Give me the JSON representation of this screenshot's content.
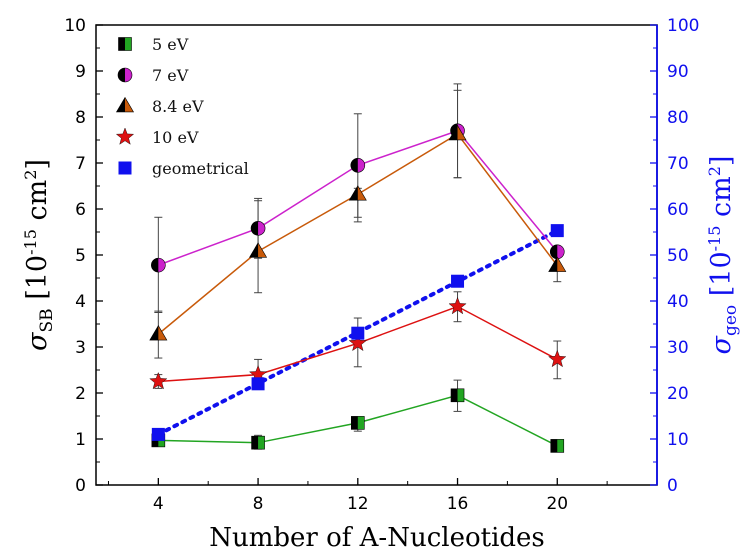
{
  "chart_data": {
    "type": "line",
    "title": "",
    "xlabel": "Number of A-Nucleotides",
    "ylabel_left": {
      "main": "σ",
      "sub": "SB",
      "unit_prefix": " [10",
      "exp": "-15",
      "unit_mid": " cm",
      "exp2": "2",
      "unit_suffix": "]"
    },
    "ylabel_right": {
      "main": "σ",
      "sub": "geo",
      "unit_prefix": " [10",
      "exp": "-15",
      "unit_mid": " cm",
      "exp2": "2",
      "unit_suffix": "]"
    },
    "x": [
      4,
      8,
      12,
      16,
      20
    ],
    "xlim": [
      1.5,
      24
    ],
    "ylim_left": [
      0,
      10
    ],
    "ylim_right": [
      0,
      100
    ],
    "x_ticks": [
      "4",
      "8",
      "12",
      "16",
      "20"
    ],
    "y_ticks_left": [
      "0",
      "1",
      "2",
      "3",
      "4",
      "5",
      "6",
      "7",
      "8",
      "9",
      "10"
    ],
    "y_ticks_right": [
      "0",
      "10",
      "20",
      "30",
      "40",
      "50",
      "60",
      "70",
      "80",
      "90",
      "100"
    ],
    "right_axis_color": "#1010ee",
    "legend_position": "top-left",
    "series": [
      {
        "name": "5 eV",
        "axis": "left",
        "marker": "square-half",
        "color": "#22a522",
        "values": [
          0.97,
          0.92,
          1.35,
          1.95,
          0.85
        ],
        "err_low": [
          0.97,
          0.78,
          1.17,
          1.6,
          0.85
        ],
        "err_high": [
          0.97,
          1.08,
          1.48,
          2.28,
          0.85
        ]
      },
      {
        "name": "7 eV",
        "axis": "left",
        "marker": "circle-half",
        "color": "#cc22cc",
        "values": [
          4.78,
          5.58,
          6.95,
          7.7,
          5.07
        ],
        "err_low": [
          3.75,
          4.93,
          5.82,
          6.68,
          5.07
        ],
        "err_high": [
          5.82,
          6.23,
          8.07,
          8.72,
          5.07
        ]
      },
      {
        "name": "8.4 eV",
        "axis": "left",
        "marker": "triangle",
        "color": "#c85a0a",
        "values": [
          3.28,
          5.08,
          6.32,
          7.63,
          4.77
        ],
        "err_low": [
          2.76,
          4.18,
          5.72,
          6.68,
          4.42
        ],
        "err_high": [
          3.78,
          6.18,
          6.45,
          8.58,
          4.77
        ]
      },
      {
        "name": "10 eV",
        "axis": "left",
        "marker": "star",
        "color": "#dd1111",
        "values": [
          2.25,
          2.4,
          3.08,
          3.88,
          2.73
        ],
        "err_low": [
          2.1,
          2.12,
          2.57,
          3.55,
          2.31
        ],
        "err_high": [
          2.4,
          2.73,
          3.63,
          4.2,
          3.13
        ]
      },
      {
        "name": "geometrical",
        "axis": "right",
        "marker": "square",
        "color": "#1010ee",
        "values": [
          11,
          22,
          33,
          44.3,
          55.3
        ]
      }
    ],
    "geometrical_fit_line": {
      "style": "dotted",
      "color": "#1010ee",
      "x": [
        4,
        20
      ],
      "values": [
        11,
        55.3
      ]
    },
    "series_line_colors": {
      "5 eV": "#22a522",
      "7 eV": "#cc22cc",
      "8.4 eV": "#c85a0a",
      "10 eV": "#dd1111"
    }
  }
}
